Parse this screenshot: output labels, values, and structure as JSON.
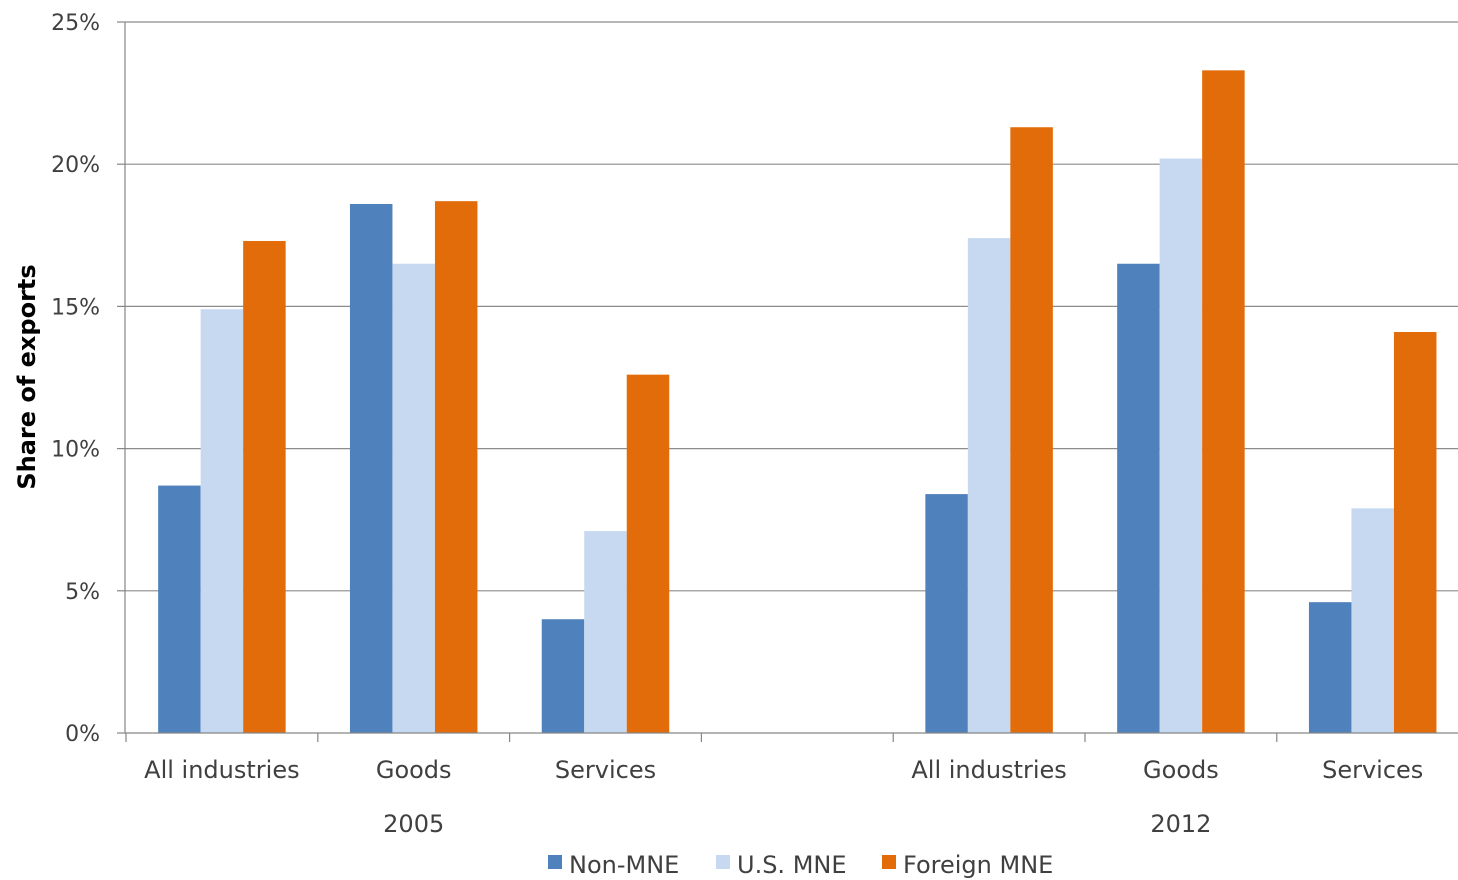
{
  "chart_data": {
    "type": "bar",
    "ylabel": "Share of exports",
    "y_ticks": [
      "0%",
      "5%",
      "10%",
      "15%",
      "20%",
      "25%"
    ],
    "ylim": [
      0,
      25
    ],
    "grid": true,
    "legend_position": "bottom",
    "groups": [
      {
        "label": "2005",
        "categories": [
          "All industries",
          "Goods",
          "Services"
        ]
      },
      {
        "label": "2012",
        "categories": [
          "All industries",
          "Goods",
          "Services"
        ]
      }
    ],
    "series": [
      {
        "name": "Non-MNE",
        "color": "#4f81bd",
        "values": [
          [
            8.7,
            18.6,
            4.0
          ],
          [
            8.4,
            16.5,
            4.6
          ]
        ]
      },
      {
        "name": "U.S. MNE",
        "color": "#c6d9f0",
        "values": [
          [
            14.9,
            16.5,
            7.1
          ],
          [
            17.4,
            20.2,
            7.9
          ]
        ]
      },
      {
        "name": "Foreign MNE",
        "color": "#e36c0a",
        "values": [
          [
            17.3,
            18.7,
            12.6
          ],
          [
            21.3,
            23.3,
            14.1
          ]
        ]
      }
    ]
  }
}
